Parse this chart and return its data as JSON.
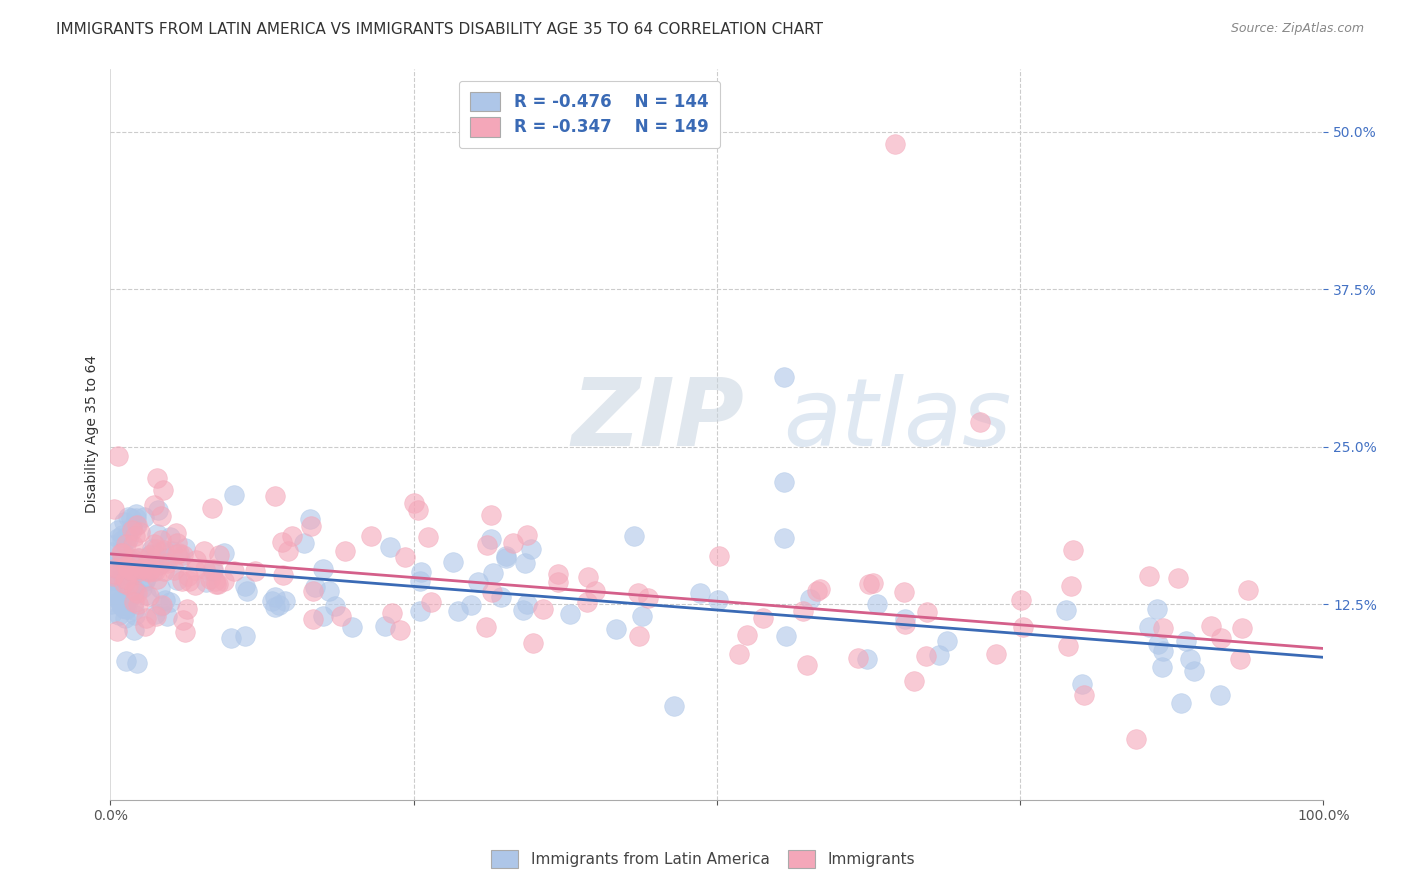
{
  "title": "IMMIGRANTS FROM LATIN AMERICA VS IMMIGRANTS DISABILITY AGE 35 TO 64 CORRELATION CHART",
  "source": "Source: ZipAtlas.com",
  "ylabel": "Disability Age 35 to 64",
  "xlim": [
    0,
    1.0
  ],
  "ylim": [
    -0.03,
    0.55
  ],
  "ytick_labels": [
    "12.5%",
    "25.0%",
    "37.5%",
    "50.0%"
  ],
  "ytick_positions": [
    0.125,
    0.25,
    0.375,
    0.5
  ],
  "legend1_label": "Immigrants from Latin America",
  "legend2_label": "Immigrants",
  "R1": -0.476,
  "N1": 144,
  "R2": -0.347,
  "N2": 149,
  "blue_color": "#aec6e8",
  "pink_color": "#f4a7b9",
  "blue_line_color": "#3a6ab5",
  "pink_line_color": "#d45f8a",
  "blue_tick_color": "#4472c4",
  "watermark_zip": "ZIP",
  "watermark_atlas": "atlas",
  "title_fontsize": 11,
  "axis_label_fontsize": 10,
  "tick_fontsize": 10,
  "intercept1": 0.158,
  "slope1": -0.075,
  "intercept2": 0.165,
  "slope2": -0.075
}
